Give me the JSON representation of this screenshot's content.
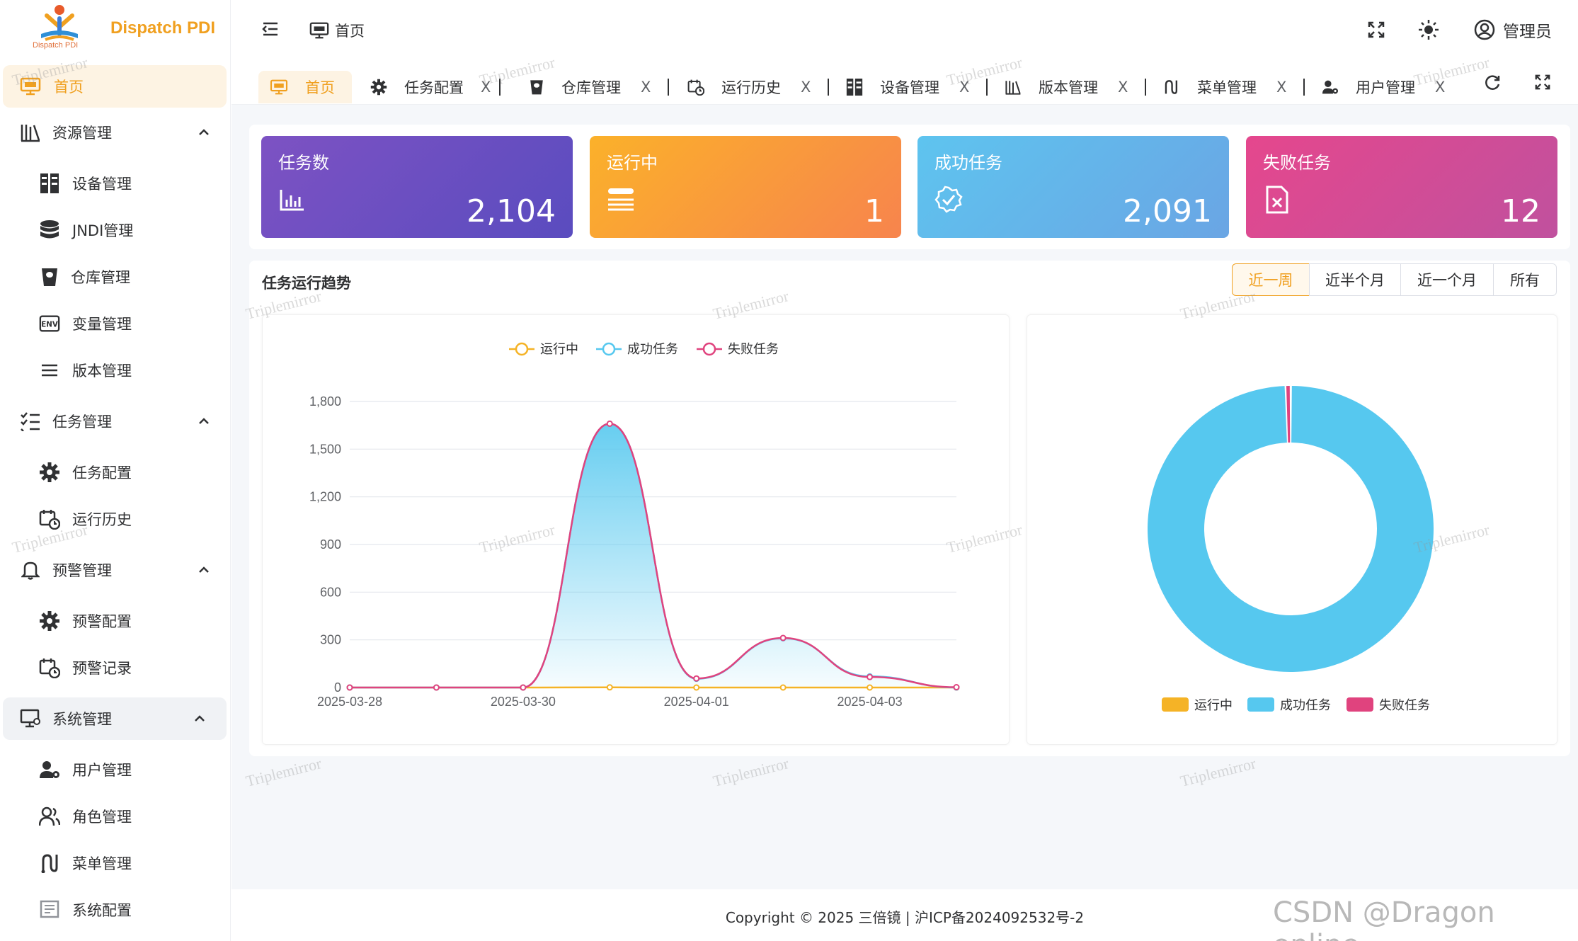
{
  "app": {
    "brand": "Dispatch PDI",
    "brand_sub": "Dispatch PDI"
  },
  "colors": {
    "accent": "#f0a020",
    "running": "#f5b326",
    "success": "#56c8ef",
    "failed": "#e0437e"
  },
  "sidebar": {
    "home": "首页",
    "groups": [
      {
        "label": "资源管理",
        "icon": "library-icon",
        "items": [
          {
            "label": "设备管理",
            "icon": "server-icon"
          },
          {
            "label": "JNDI管理",
            "icon": "database-icon"
          },
          {
            "label": "仓库管理",
            "icon": "bucket-icon"
          },
          {
            "label": "变量管理",
            "icon": "env-icon"
          },
          {
            "label": "版本管理",
            "icon": "list-icon"
          }
        ]
      },
      {
        "label": "任务管理",
        "icon": "checklist-icon",
        "items": [
          {
            "label": "任务配置",
            "icon": "gear-icon"
          },
          {
            "label": "运行历史",
            "icon": "calendar-clock-icon"
          }
        ]
      },
      {
        "label": "预警管理",
        "icon": "bell-icon",
        "items": [
          {
            "label": "预警配置",
            "icon": "gear-icon"
          },
          {
            "label": "预警记录",
            "icon": "calendar-clock-icon"
          }
        ]
      },
      {
        "label": "系统管理",
        "icon": "monitor-gear-icon",
        "items": [
          {
            "label": "用户管理",
            "icon": "user-gear-icon"
          },
          {
            "label": "角色管理",
            "icon": "users-icon"
          },
          {
            "label": "菜单管理",
            "icon": "route-icon"
          },
          {
            "label": "系统配置",
            "icon": "settings-panel-icon"
          }
        ]
      }
    ]
  },
  "header": {
    "breadcrumb": "首页",
    "user": "管理员"
  },
  "tabs": [
    {
      "label": "首页",
      "icon": "home-monitor-icon"
    },
    {
      "label": "任务配置",
      "icon": "gear-icon"
    },
    {
      "label": "仓库管理",
      "icon": "bucket-icon"
    },
    {
      "label": "运行历史",
      "icon": "calendar-clock-icon"
    },
    {
      "label": "设备管理",
      "icon": "server-icon"
    },
    {
      "label": "版本管理",
      "icon": "library-icon"
    },
    {
      "label": "菜单管理",
      "icon": "route-icon"
    },
    {
      "label": "用户管理",
      "icon": "user-gear-icon"
    }
  ],
  "tab_close": "X",
  "stats": [
    {
      "title": "任务数",
      "value": "2,104"
    },
    {
      "title": "运行中",
      "value": "1"
    },
    {
      "title": "成功任务",
      "value": "2,091"
    },
    {
      "title": "失败任务",
      "value": "12"
    }
  ],
  "trend": {
    "title": "任务运行趋势",
    "ranges": [
      "近一周",
      "近半个月",
      "近一个月",
      "所有"
    ],
    "selected_range": "近一周"
  },
  "watermark": "Triplemirror",
  "footer": {
    "copyright": "Copyright © 2025 三倍镜 | 沪ICP备2024092532号-2",
    "csdn": "CSDN @Dragon online"
  },
  "chart_data": [
    {
      "type": "area",
      "x": [
        "2025-03-28",
        "2025-03-29",
        "2025-03-30",
        "2025-03-31",
        "2025-04-01",
        "2025-04-02",
        "2025-04-03",
        "2025-04-04"
      ],
      "xticks": [
        "2025-03-28",
        "2025-03-30",
        "2025-04-01",
        "2025-04-03"
      ],
      "yticks": [
        "0",
        "300",
        "600",
        "900",
        "1,200",
        "1,500",
        "1,800"
      ],
      "ylim": [
        0,
        1800
      ],
      "legend": [
        "运行中",
        "成功任务",
        "失败任务"
      ],
      "legend_position": "top-center",
      "series": [
        {
          "name": "运行中",
          "values": [
            0,
            0,
            0,
            1,
            0,
            0,
            0,
            0
          ]
        },
        {
          "name": "成功任务",
          "values": [
            0,
            0,
            0,
            1660,
            55,
            310,
            70,
            0
          ]
        },
        {
          "name": "失败任务",
          "values": [
            0,
            0,
            0,
            1660,
            57,
            312,
            66,
            2
          ]
        }
      ]
    },
    {
      "type": "pie",
      "donut": true,
      "legend": [
        "运行中",
        "成功任务",
        "失败任务"
      ],
      "legend_position": "bottom",
      "slices": [
        {
          "name": "运行中",
          "value": 1
        },
        {
          "name": "成功任务",
          "value": 2091
        },
        {
          "name": "失败任务",
          "value": 12
        }
      ]
    }
  ]
}
